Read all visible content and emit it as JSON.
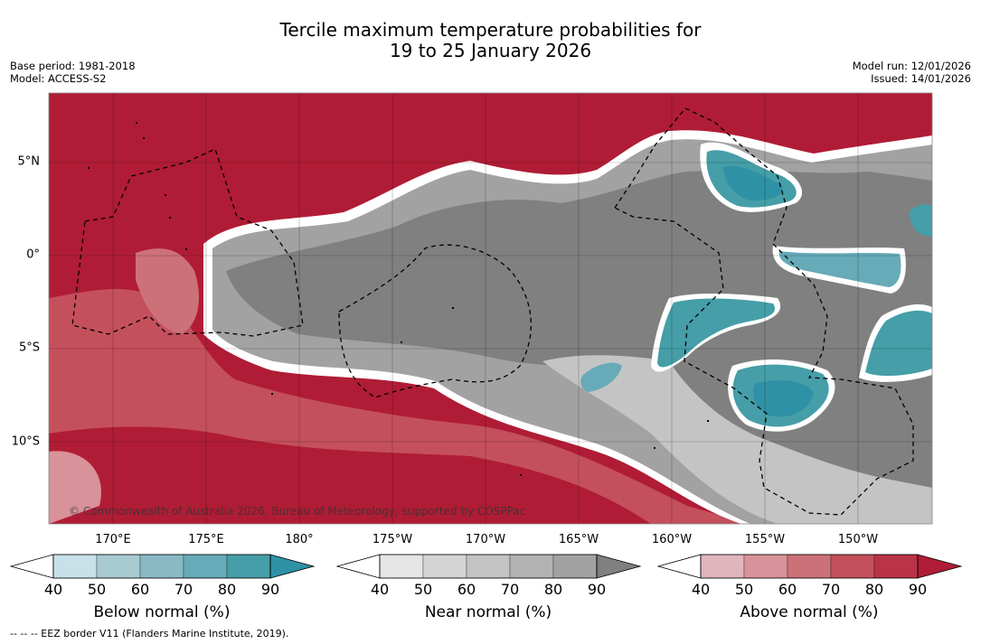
{
  "title": {
    "line1": "Tercile maximum temperature probabilities for",
    "line2": "19 to 25 January 2026"
  },
  "meta": {
    "base_period": "Base period: 1981-2018",
    "model": "Model: ACCESS-S2",
    "model_run": "Model run: 12/01/2026",
    "issued": "Issued: 14/01/2026"
  },
  "map": {
    "lat_labels": [
      "5°N",
      "0°",
      "5°S",
      "10°S"
    ],
    "lon_labels": [
      "170°E",
      "175°E",
      "180°",
      "175°W",
      "170°W",
      "165°W",
      "160°W",
      "155°W",
      "150°W"
    ],
    "copyright": "© Commonwealth of Australia 2026, Bureau of Meteorology, supported by COSPPac",
    "regions": [
      "above-normal-north",
      "above-normal-south",
      "near-normal-band",
      "below-normal-patches",
      "eez-borders"
    ]
  },
  "colorbars": [
    {
      "name": "below",
      "title": "Below normal (%)",
      "ticks": [
        "40",
        "50",
        "60",
        "70",
        "80",
        "90"
      ],
      "colors": [
        "#ffffff",
        "#c8e1e8",
        "#a8cad1",
        "#88b9c4",
        "#67aab8",
        "#459ea8",
        "#2f91a5"
      ]
    },
    {
      "name": "near",
      "title": "Near normal (%)",
      "ticks": [
        "40",
        "50",
        "60",
        "70",
        "80",
        "90"
      ],
      "colors": [
        "#ffffff",
        "#e5e5e5",
        "#d4d4d4",
        "#c4c4c4",
        "#b3b3b3",
        "#a2a2a2",
        "#808080"
      ]
    },
    {
      "name": "above",
      "title": "Above normal (%)",
      "ticks": [
        "40",
        "50",
        "60",
        "70",
        "80",
        "90"
      ],
      "colors": [
        "#ffffff",
        "#e0b5bb",
        "#d89299",
        "#cd7179",
        "#c4505c",
        "#ba3347",
        "#b01c35"
      ]
    }
  ],
  "footer": "-- -- -- EEZ border V11 (Flanders Marine Institute, 2019)."
}
